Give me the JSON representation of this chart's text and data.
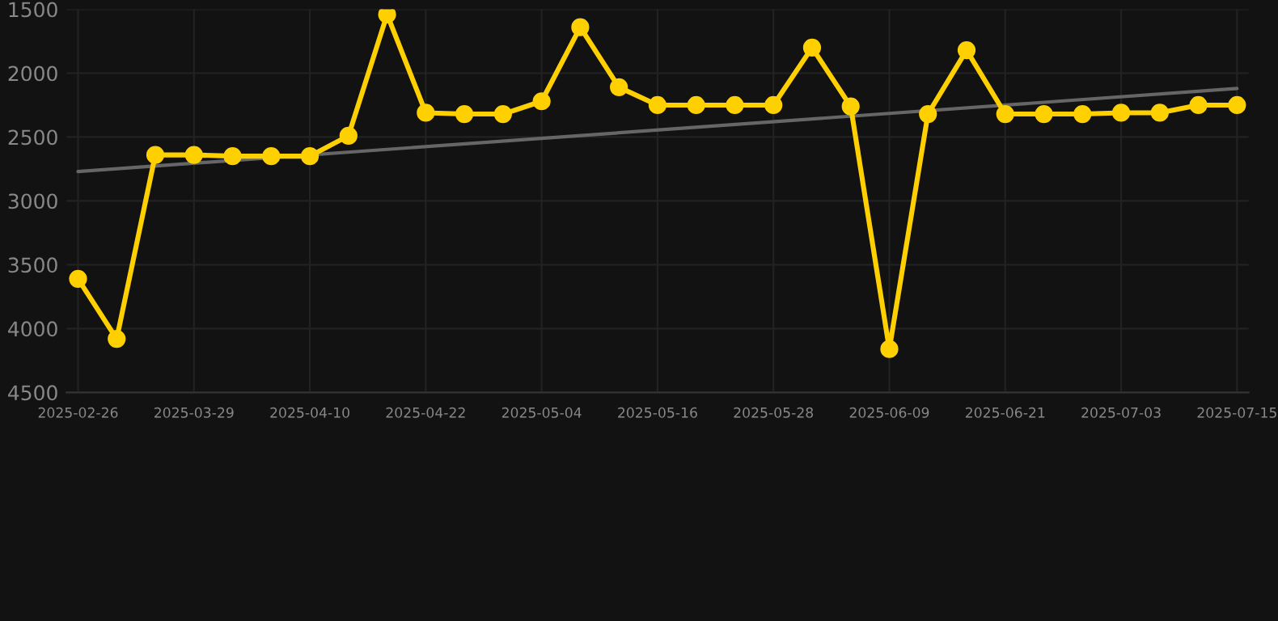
{
  "chart_data": {
    "type": "line",
    "categories": [
      "2025-02-26",
      null,
      null,
      "2025-03-29",
      null,
      null,
      "2025-04-10",
      null,
      null,
      "2025-04-22",
      null,
      null,
      "2025-05-04",
      null,
      null,
      "2025-05-16",
      null,
      null,
      "2025-05-28",
      null,
      null,
      "2025-06-09",
      null,
      null,
      "2025-06-21",
      null,
      null,
      "2025-07-03",
      null,
      null,
      "2025-07-15"
    ],
    "series": [
      {
        "color": "#ffd000",
        "marker": "circle",
        "values": [
          3610,
          4080,
          2640,
          2640,
          2650,
          2650,
          2650,
          2490,
          1540,
          2310,
          2320,
          2320,
          2220,
          1640,
          2110,
          2250,
          2250,
          2250,
          2250,
          1800,
          2260,
          4160,
          2320,
          1820,
          2320,
          2320,
          2320,
          2310,
          2310,
          2250,
          2250
        ]
      },
      {
        "color": "#666666",
        "marker": "none",
        "values": [
          2770,
          null,
          null,
          null,
          null,
          null,
          null,
          null,
          null,
          null,
          null,
          null,
          null,
          null,
          null,
          null,
          null,
          null,
          null,
          null,
          null,
          null,
          null,
          null,
          null,
          null,
          null,
          null,
          null,
          null,
          2120
        ]
      }
    ],
    "ylim": [
      4500,
      1500
    ],
    "yticks": [
      1500,
      2000,
      2500,
      3000,
      3500,
      4000,
      4500
    ],
    "grid": true,
    "legend": false
  }
}
